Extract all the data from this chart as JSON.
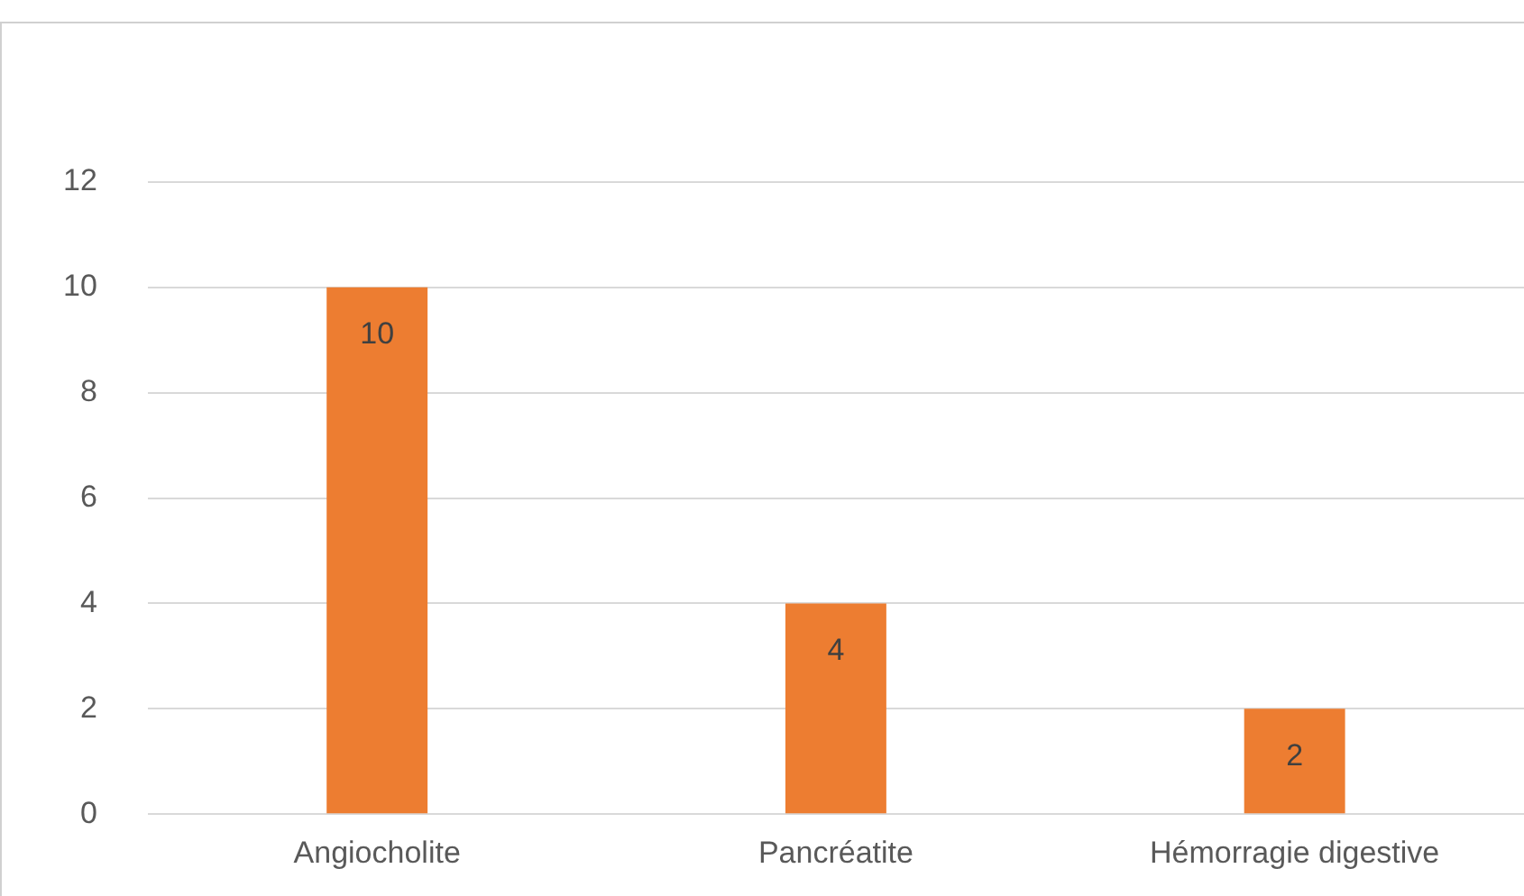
{
  "chart_data": {
    "type": "bar",
    "categories": [
      "Angiocholite",
      "Pancréatite",
      "Hémorragie digestive"
    ],
    "values": [
      10,
      4,
      2
    ],
    "color": "#ed7d31",
    "ylim": [
      0,
      12
    ],
    "yticks": [
      0,
      2,
      4,
      6,
      8,
      10,
      12
    ],
    "grid": "y",
    "data_labels": true
  }
}
